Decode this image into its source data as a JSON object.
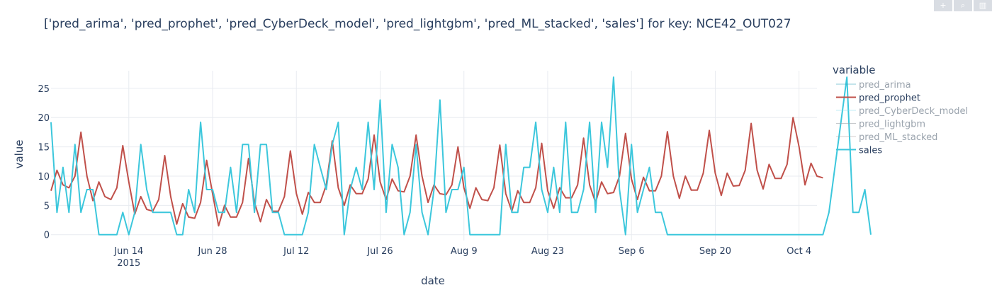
{
  "modebar": {
    "buttons": [
      {
        "name": "zoom-in",
        "glyph": "+"
      },
      {
        "name": "zoom",
        "glyph": "⌕"
      },
      {
        "name": "plotly-logo",
        "glyph": "▥"
      }
    ]
  },
  "chart_data": {
    "type": "line",
    "title": "['pred_arima', 'pred_prophet', 'pred_CyberDeck_model', 'pred_lightgbm', 'pred_ML_stacked', 'sales'] for key: NCE42_OUT027",
    "xlabel": "date",
    "ylabel": "value",
    "xlim": [
      "2015-06-01",
      "2015-10-07"
    ],
    "ylim": [
      -1,
      28
    ],
    "grid": true,
    "legend_title": "variable",
    "legend_position": "right",
    "x_ticks": [
      {
        "date": "2015-06-14",
        "label": "Jun 14",
        "sublabel": "2015"
      },
      {
        "date": "2015-06-28",
        "label": "Jun 28",
        "sublabel": ""
      },
      {
        "date": "2015-07-12",
        "label": "Jul 12",
        "sublabel": ""
      },
      {
        "date": "2015-07-26",
        "label": "Jul 26",
        "sublabel": ""
      },
      {
        "date": "2015-08-09",
        "label": "Aug 9",
        "sublabel": ""
      },
      {
        "date": "2015-08-23",
        "label": "Aug 23",
        "sublabel": ""
      },
      {
        "date": "2015-09-06",
        "label": "Sep 6",
        "sublabel": ""
      },
      {
        "date": "2015-09-20",
        "label": "Sep 20",
        "sublabel": ""
      },
      {
        "date": "2015-10-04",
        "label": "Oct 4",
        "sublabel": ""
      }
    ],
    "y_ticks": [
      0,
      5,
      10,
      15,
      20,
      25
    ],
    "x_start": "2015-06-01",
    "series": [
      {
        "name": "pred_arima",
        "color": "#2a9fb8",
        "visible": false,
        "values": []
      },
      {
        "name": "pred_prophet",
        "color": "#c0504a",
        "visible": true,
        "values": [
          7.5,
          11,
          8.5,
          8,
          10,
          17.5,
          10,
          5.8,
          9,
          6.5,
          6,
          8,
          15.2,
          9,
          3.5,
          6.5,
          4.3,
          4,
          6,
          13.5,
          6.5,
          1.8,
          5.3,
          3,
          2.8,
          5.5,
          12.7,
          7,
          1.5,
          5,
          3,
          3,
          5.5,
          13,
          5.5,
          2.2,
          6,
          4,
          4,
          6.5,
          14.3,
          7,
          3.5,
          7.2,
          5.5,
          5.5,
          8.5,
          16,
          8,
          5,
          8.5,
          7,
          7,
          9.5,
          17,
          9,
          6,
          9.5,
          7.5,
          7.3,
          10,
          17,
          10,
          5.5,
          8.5,
          7,
          6.8,
          8.5,
          15,
          8,
          4.5,
          8,
          6,
          5.8,
          8,
          15.3,
          7,
          4,
          7.5,
          5.5,
          5.5,
          8,
          15.6,
          7.5,
          4.5,
          8,
          6.3,
          6.3,
          8.5,
          16.5,
          8.5,
          5.5,
          9,
          7,
          7.2,
          10,
          17.3,
          9.5,
          6,
          9.8,
          7.5,
          7.5,
          10,
          17.6,
          10,
          6.2,
          10,
          7.6,
          7.6,
          10.5,
          17.8,
          10.5,
          6.7,
          10.5,
          8.3,
          8.4,
          11,
          19,
          11,
          7.8,
          12,
          9.6,
          9.6,
          12,
          20,
          15,
          8.5,
          12.2,
          10,
          9.7
        ]
      },
      {
        "name": "pred_CyberDeck_model",
        "color": "#8fe0ee",
        "visible": false,
        "values": []
      },
      {
        "name": "pred_lightgbm",
        "color": "#9aa0a6",
        "visible": false,
        "values": []
      },
      {
        "name": "pred_ML_stacked",
        "color": "#b0a6a6",
        "visible": false,
        "values": []
      },
      {
        "name": "sales",
        "color": "#3cc7dc",
        "visible": true,
        "values": [
          19.2,
          3.8,
          11.5,
          3.8,
          15.4,
          3.8,
          7.7,
          7.7,
          0,
          0,
          0,
          0,
          3.8,
          0,
          3.8,
          15.4,
          7.7,
          3.8,
          3.8,
          3.8,
          3.8,
          0,
          0,
          7.7,
          3.8,
          19.2,
          7.7,
          7.7,
          3.8,
          3.8,
          11.5,
          3.8,
          15.4,
          15.4,
          3.8,
          15.4,
          15.4,
          3.8,
          3.8,
          0,
          0,
          0,
          0,
          3.8,
          15.4,
          11.5,
          7.7,
          15.4,
          19.2,
          0,
          7.7,
          11.5,
          7.7,
          19.2,
          7.7,
          23,
          3.8,
          15.4,
          11.5,
          0,
          3.8,
          15.4,
          3.8,
          0,
          7.7,
          23,
          3.8,
          7.7,
          7.7,
          11.5,
          0,
          0,
          0,
          0,
          0,
          0,
          15.4,
          3.8,
          3.8,
          11.5,
          11.5,
          19.2,
          7.7,
          3.8,
          11.5,
          3.8,
          19.2,
          3.8,
          3.8,
          7.7,
          19.2,
          3.8,
          19.2,
          11.5,
          26.9,
          7.7,
          0,
          15.4,
          3.8,
          7.7,
          11.5,
          3.8,
          3.8,
          0,
          0,
          0,
          0,
          0,
          0,
          0,
          0,
          0,
          0,
          0,
          0,
          0,
          0,
          0,
          0,
          0,
          0,
          0,
          0,
          0,
          0,
          0,
          0,
          0,
          0,
          0,
          3.8,
          11.5,
          19.2,
          26.9,
          3.8,
          3.8,
          7.7,
          0
        ]
      }
    ]
  }
}
